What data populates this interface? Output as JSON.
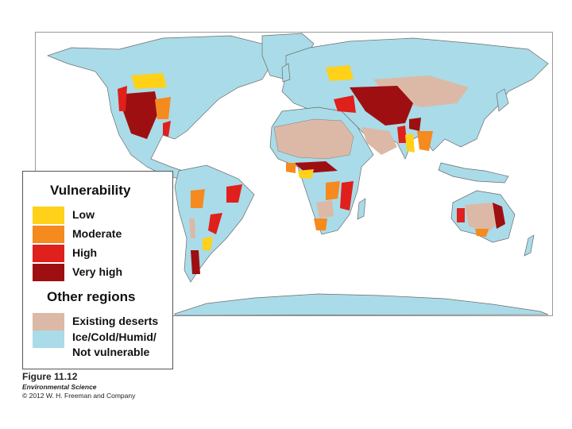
{
  "legend": {
    "vulnerability_title": "Vulnerability",
    "items": [
      {
        "label": "Low",
        "color": "#ffd118"
      },
      {
        "label": "Moderate",
        "color": "#f58a1e"
      },
      {
        "label": "High",
        "color": "#e0201c"
      },
      {
        "label": "Very high",
        "color": "#9e0f12"
      }
    ],
    "other_title": "Other regions",
    "other_items": [
      {
        "label": "Existing deserts",
        "color": "#dcb9a6"
      },
      {
        "label_line1": "Ice/Cold/Humid/",
        "label_line2": "Not vulnerable",
        "color": "#aadbe8"
      }
    ]
  },
  "caption": {
    "figure": "Figure 11.12",
    "book": "Environmental Science",
    "copyright": "© 2012 W. H. Freeman and Company"
  },
  "map": {
    "subject": "World map of desertification vulnerability",
    "ocean_color": "#ffffff",
    "land_color": "#aadbe8",
    "border_color": "#6b6b6b"
  }
}
